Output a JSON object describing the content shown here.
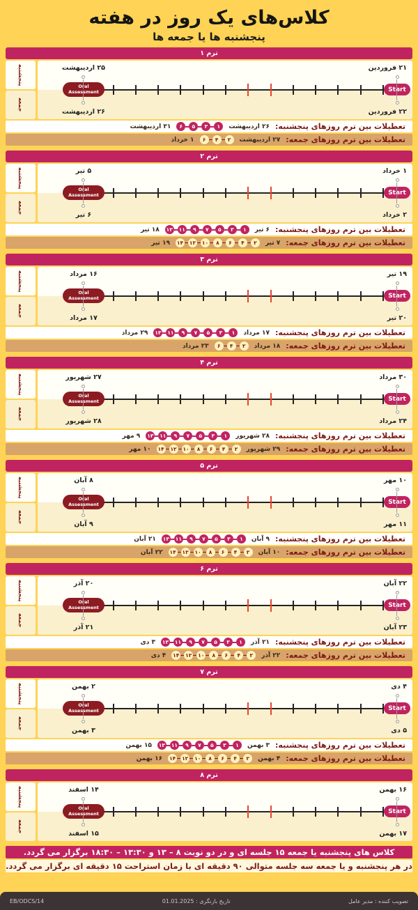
{
  "title": "کلاس‌های یک روز در هفته",
  "subtitle": "پنجشنبه ها یا جمعه ها",
  "labels": {
    "start": "Start",
    "oral_line1": "Oral",
    "oral_line2": "Assessment",
    "thursday": "پنجشنبه",
    "friday": "جمعه",
    "th_break_label": "تعطیلات بین ترم روزهای پنجشنبه:",
    "fr_break_label": "تعطیلات بین ترم روزهای جمعه:"
  },
  "colors": {
    "page_bg": "#FFD355",
    "magenta": "#C02460",
    "dark_red": "#8D1B22",
    "label_red": "#7D1A12",
    "tan_row": "#D8A469",
    "cream": "#FAF0CD",
    "red_tick": "#E8442C",
    "bottom_bar": "#3C3335"
  },
  "terms": [
    {
      "title": "ترم ۱",
      "th_start": "۲۱ فروردین",
      "fr_start": "۲۲ فروردین",
      "th_oa": "۲۵ اردیبهشت",
      "fr_oa": "۲۶ اردیبهشت",
      "th_break": {
        "from": "۲۶ اردیبهشت",
        "days": [
          "۱",
          "۳",
          "۵",
          "۶"
        ],
        "to": "۳۱ اردیبهشت"
      },
      "fr_break": {
        "from": "۲۷ اردیبهشت",
        "days": [
          "۲",
          "۴",
          "۶"
        ],
        "to": "۱ خرداد"
      }
    },
    {
      "title": "ترم ۲",
      "th_start": "۱ خرداد",
      "fr_start": "۲ خرداد",
      "th_oa": "۵ تیر",
      "fr_oa": "۶ تیر",
      "th_break": {
        "from": "۶ تیر",
        "days": [
          "۱",
          "۳",
          "۵",
          "۷",
          "۹",
          "۱۱",
          "۱۳"
        ],
        "to": "۱۸ تیر"
      },
      "fr_break": {
        "from": "۷ تیر",
        "days": [
          "۲",
          "۴",
          "۶",
          "۸",
          "۱۰",
          "۱۲",
          "۱۴"
        ],
        "to": "۱۹ تیر"
      }
    },
    {
      "title": "ترم ۳",
      "th_start": "۱۹ تیر",
      "fr_start": "۲۰ تیر",
      "th_oa": "۱۶ مرداد",
      "fr_oa": "۱۷ مرداد",
      "th_break": {
        "from": "۱۷ مرداد",
        "days": [
          "۱",
          "۳",
          "۵",
          "۷",
          "۹",
          "۱۱",
          "۱۳"
        ],
        "to": "۲۹ مرداد"
      },
      "fr_break": {
        "from": "۱۸ مرداد",
        "days": [
          "۲",
          "۴",
          "۶"
        ],
        "to": "۲۳ مرداد"
      }
    },
    {
      "title": "ترم ۴",
      "th_start": "۳۰ مرداد",
      "fr_start": "۲۴ مرداد",
      "th_oa": "۲۷ شهریور",
      "fr_oa": "۲۸ شهریور",
      "th_break": {
        "from": "۲۸ شهریور",
        "days": [
          "۱",
          "۳",
          "۵",
          "۷",
          "۹",
          "۱۱",
          "۱۳"
        ],
        "to": "۹ مهر"
      },
      "fr_break": {
        "from": "۲۹ شهریور",
        "days": [
          "۲",
          "۴",
          "۶",
          "۸",
          "۱۰",
          "۱۲",
          "۱۴"
        ],
        "to": "۱۰ مهر"
      }
    },
    {
      "title": "ترم ۵",
      "th_start": "۱۰ مهر",
      "fr_start": "۱۱ مهر",
      "th_oa": "۸ آبان",
      "fr_oa": "۹ آبان",
      "th_break": {
        "from": "۹ آبان",
        "days": [
          "۱",
          "۳",
          "۵",
          "۷",
          "۹",
          "۱۱",
          "۱۳"
        ],
        "to": "۲۱ آبان"
      },
      "fr_break": {
        "from": "۱۰ آبان",
        "days": [
          "۲",
          "۴",
          "۶",
          "۸",
          "۱۰",
          "۱۲",
          "۱۴"
        ],
        "to": "۲۲ آبان"
      }
    },
    {
      "title": "ترم ۶",
      "th_start": "۲۲ آبان",
      "fr_start": "۲۳ آبان",
      "th_oa": "۲۰ آذر",
      "fr_oa": "۲۱ آذر",
      "th_break": {
        "from": "۲۱ آذر",
        "days": [
          "۱",
          "۳",
          "۵",
          "۷",
          "۹",
          "۱۱",
          "۱۳"
        ],
        "to": "۳ دی"
      },
      "fr_break": {
        "from": "۲۲ آذر",
        "days": [
          "۲",
          "۴",
          "۶",
          "۸",
          "۱۰",
          "۱۲",
          "۱۴"
        ],
        "to": "۴ دی"
      }
    },
    {
      "title": "ترم ۷",
      "th_start": "۴ دی",
      "fr_start": "۵ دی",
      "th_oa": "۲ بهمن",
      "fr_oa": "۳ بهمن",
      "th_break": {
        "from": "۳ بهمن",
        "days": [
          "۱",
          "۳",
          "۵",
          "۷",
          "۹",
          "۱۱",
          "۱۳"
        ],
        "to": "۱۵ بهمن"
      },
      "fr_break": {
        "from": "۴ بهمن",
        "days": [
          "۲",
          "۴",
          "۶",
          "۸",
          "۱۰",
          "۱۲",
          "۱۴"
        ],
        "to": "۱۶ بهمن"
      }
    },
    {
      "title": "ترم ۸",
      "th_start": "۱۶ بهمن",
      "fr_start": "۱۷ بهمن",
      "th_oa": "۱۴ اسفند",
      "fr_oa": "۱۵ اسفند"
    }
  ],
  "footer": {
    "note1": "کلاس های پنجشنبه یا جمعه ۱۵ جلسه ای و در دو نوبت ۸ – ۱۳ و ۱۳:۳۰ – ۱۸:۳۰ برگزار می گردد.",
    "note2": "در هر پنجشنبه و یا جمعه سه جلسه متوالی ۹۰ دقیقه ای با زمان استراحت ۱۵ دقیقه ای برگزار می گردد.",
    "doc_code": "EB/ODCS/14",
    "revision": "تاریخ بازنگری : 01.01.2025",
    "approver": "تصویب کننده : مدیر عامل"
  }
}
